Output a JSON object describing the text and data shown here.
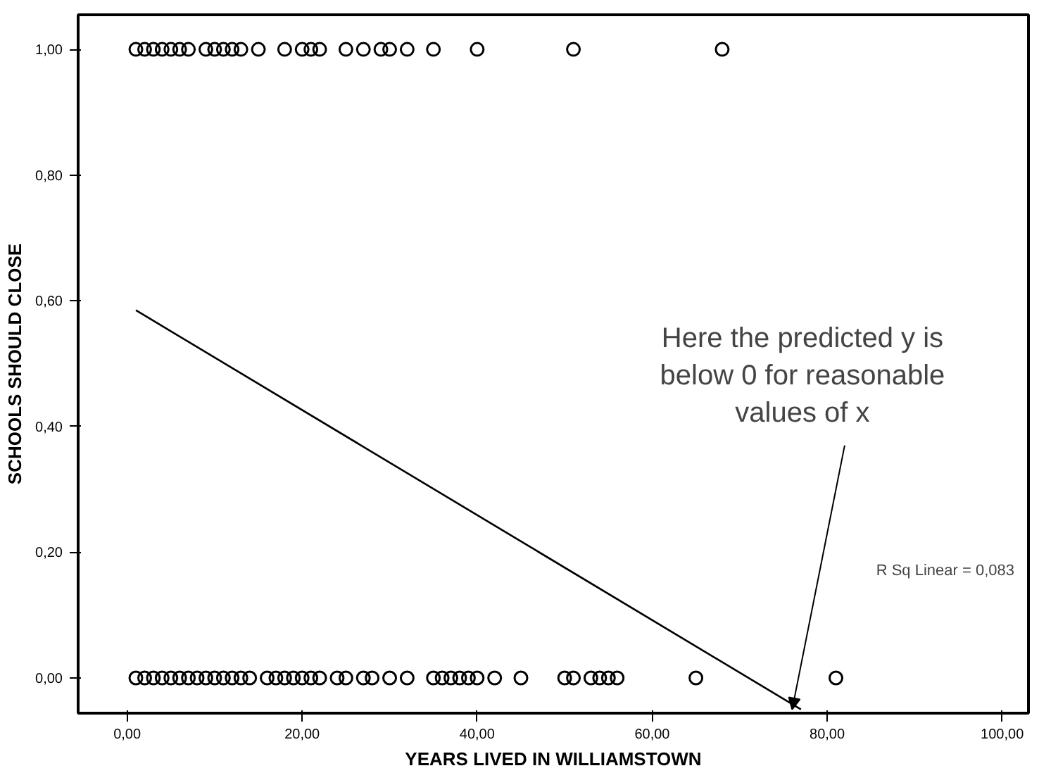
{
  "chart_data": {
    "type": "scatter",
    "xlabel": "YEARS LIVED IN WILLIAMSTOWN",
    "ylabel": "SCHOOLS SHOULD CLOSE",
    "xlim": [
      -5.6,
      103
    ],
    "ylim": [
      -0.056,
      1.055
    ],
    "xticks": [
      {
        "value": 0,
        "label": "0,00"
      },
      {
        "value": 20,
        "label": "20,00"
      },
      {
        "value": 40,
        "label": "40,00"
      },
      {
        "value": 60,
        "label": "60,00"
      },
      {
        "value": 80,
        "label": "80,00"
      },
      {
        "value": 100,
        "label": "100,00"
      }
    ],
    "yticks": [
      {
        "value": 0,
        "label": "0,00"
      },
      {
        "value": 0.2,
        "label": "0,20"
      },
      {
        "value": 0.4,
        "label": "0,40"
      },
      {
        "value": 0.6,
        "label": "0,60"
      },
      {
        "value": 0.8,
        "label": "0,80"
      },
      {
        "value": 1,
        "label": "1,00"
      }
    ],
    "marker": "circle",
    "grid": false,
    "series": [
      {
        "color": "#000000",
        "x": [
          1,
          2,
          3,
          4,
          5,
          6,
          7,
          9,
          10,
          11,
          12,
          13,
          15,
          18,
          20,
          21,
          22,
          25,
          27,
          29,
          30,
          32,
          35,
          40,
          51,
          68
        ],
        "values": [
          1,
          1,
          1,
          1,
          1,
          1,
          1,
          1,
          1,
          1,
          1,
          1,
          1,
          1,
          1,
          1,
          1,
          1,
          1,
          1,
          1,
          1,
          1,
          1,
          1,
          1
        ]
      },
      {
        "color": "#000000",
        "x": [
          1,
          2,
          3,
          4,
          5,
          6,
          7,
          8,
          9,
          10,
          11,
          12,
          13,
          14,
          16,
          17,
          18,
          19,
          20,
          21,
          22,
          24,
          25,
          27,
          28,
          30,
          32,
          35,
          36,
          37,
          38,
          39,
          40,
          42,
          45,
          50,
          51,
          53,
          54,
          55,
          56,
          65,
          81
        ],
        "values": [
          0,
          0,
          0,
          0,
          0,
          0,
          0,
          0,
          0,
          0,
          0,
          0,
          0,
          0,
          0,
          0,
          0,
          0,
          0,
          0,
          0,
          0,
          0,
          0,
          0,
          0,
          0,
          0,
          0,
          0,
          0,
          0,
          0,
          0,
          0,
          0,
          0,
          0,
          0,
          0,
          0,
          0,
          0
        ]
      },
      {
        "type": "line",
        "marker": "none",
        "color": "#000000",
        "x": [
          1,
          77
        ],
        "values": [
          0.585,
          -0.05
        ]
      }
    ],
    "annotations": [
      {
        "text": "Here the predicted y is\nbelow 0 for reasonable\nvalues of x",
        "x": 76,
        "y": -0.05
      },
      "R Sq Linear = 0,083"
    ]
  }
}
